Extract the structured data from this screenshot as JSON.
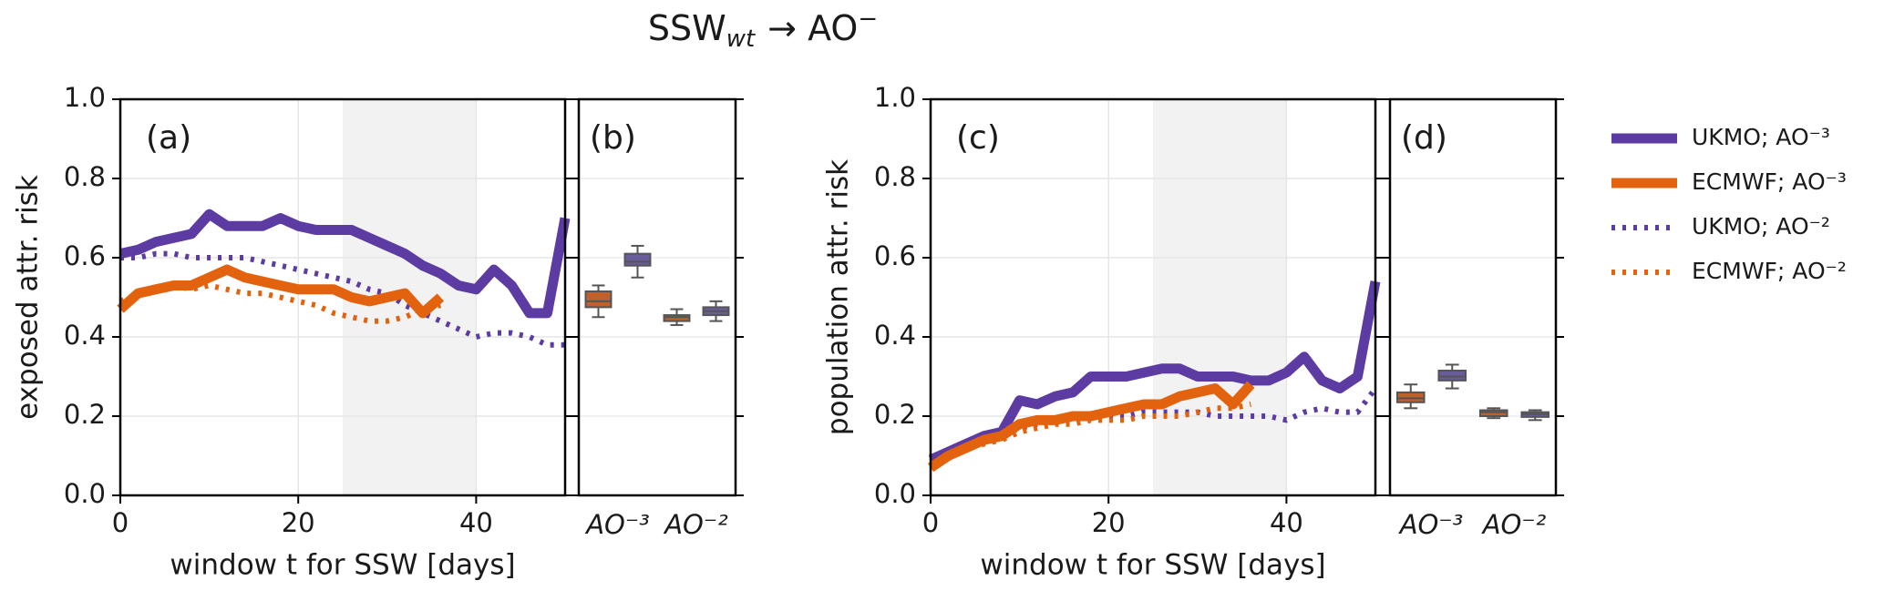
{
  "title": {
    "main": "SSW",
    "sub": "wt",
    "rest": "→ AO",
    "sup": "−"
  },
  "chart_data": [
    {
      "type": "line",
      "label": "(a)",
      "ylabel": "exposed attr. risk",
      "xlabel": "window t for SSW [days]",
      "x": [
        0,
        2,
        4,
        6,
        8,
        10,
        12,
        14,
        16,
        18,
        20,
        22,
        24,
        26,
        28,
        30,
        32,
        34,
        36,
        38,
        40,
        42,
        44,
        46,
        48,
        50
      ],
      "xlim": [
        0,
        50
      ],
      "xticks": [
        0,
        20,
        40
      ],
      "ylim": [
        0,
        1
      ],
      "yticks": [
        {
          "value": 0,
          "label": "0.0"
        },
        0.2,
        0.4,
        0.6,
        0.8,
        {
          "value": 1,
          "label": "1.0"
        }
      ],
      "grid": true,
      "shade": [
        25,
        40
      ],
      "series": [
        {
          "name": "UKMO; AO⁻³",
          "color": "#5c3ba3",
          "style": "solid",
          "values": [
            0.61,
            0.62,
            0.64,
            0.65,
            0.66,
            0.71,
            0.68,
            0.68,
            0.68,
            0.7,
            0.68,
            0.67,
            0.67,
            0.67,
            0.65,
            0.63,
            0.61,
            0.58,
            0.56,
            0.53,
            0.52,
            0.57,
            0.53,
            0.46,
            0.46,
            0.7
          ]
        },
        {
          "name": "ECMWF; AO⁻³",
          "color": "#e3620e",
          "style": "solid",
          "values": [
            0.47,
            0.51,
            0.52,
            0.53,
            0.53,
            0.55,
            0.57,
            0.55,
            0.54,
            0.53,
            0.52,
            0.52,
            0.52,
            0.5,
            0.49,
            0.5,
            0.51,
            0.46,
            0.5,
            null,
            null,
            null,
            null,
            null,
            null,
            null
          ]
        },
        {
          "name": "UKMO; AO⁻²",
          "color": "#5c3ba3",
          "style": "dotted",
          "values": [
            0.6,
            0.6,
            0.61,
            0.61,
            0.6,
            0.6,
            0.6,
            0.6,
            0.59,
            0.58,
            0.57,
            0.56,
            0.55,
            0.54,
            0.52,
            0.51,
            0.48,
            0.46,
            0.44,
            0.42,
            0.4,
            0.41,
            0.41,
            0.4,
            0.38,
            0.38
          ]
        },
        {
          "name": "ECMWF; AO⁻²",
          "color": "#e3620e",
          "style": "dotted",
          "values": [
            0.49,
            0.51,
            0.52,
            0.53,
            0.52,
            0.53,
            0.52,
            0.51,
            0.51,
            0.5,
            0.49,
            0.48,
            0.46,
            0.45,
            0.44,
            0.44,
            0.45,
            0.47,
            0.48,
            null,
            null,
            null,
            null,
            null,
            null,
            null
          ]
        }
      ]
    },
    {
      "type": "box",
      "label": "(b)",
      "categories": [
        "AO⁻³",
        "AO⁻²"
      ],
      "ylim": [
        0,
        1
      ],
      "yticks": [
        0,
        0.2,
        0.4,
        0.6,
        0.8,
        1
      ],
      "series": [
        {
          "color": "#c0602a",
          "boxes": [
            {
              "min": 0.45,
              "q1": 0.475,
              "median": 0.49,
              "q3": 0.515,
              "max": 0.53
            },
            {
              "min": 0.43,
              "q1": 0.44,
              "median": 0.45,
              "q3": 0.455,
              "max": 0.47
            }
          ]
        },
        {
          "color": "#6a5b9a",
          "boxes": [
            {
              "min": 0.55,
              "q1": 0.58,
              "median": 0.59,
              "q3": 0.61,
              "max": 0.63
            },
            {
              "min": 0.44,
              "q1": 0.455,
              "median": 0.465,
              "q3": 0.475,
              "max": 0.49
            }
          ]
        }
      ]
    },
    {
      "type": "line",
      "label": "(c)",
      "ylabel": "population attr. risk",
      "xlabel": "window t for SSW [days]",
      "x": [
        0,
        2,
        4,
        6,
        8,
        10,
        12,
        14,
        16,
        18,
        20,
        22,
        24,
        26,
        28,
        30,
        32,
        34,
        36,
        38,
        40,
        42,
        44,
        46,
        48,
        50
      ],
      "xlim": [
        0,
        50
      ],
      "xticks": [
        0,
        20,
        40
      ],
      "ylim": [
        0,
        1
      ],
      "yticks": [
        {
          "value": 0,
          "label": "0.0"
        },
        0.2,
        0.4,
        0.6,
        0.8,
        {
          "value": 1,
          "label": "1.0"
        }
      ],
      "grid": true,
      "shade": [
        25,
        40
      ],
      "series": [
        {
          "color": "#5c3ba3",
          "style": "solid",
          "values": [
            0.09,
            0.11,
            0.13,
            0.15,
            0.16,
            0.24,
            0.23,
            0.25,
            0.26,
            0.3,
            0.3,
            0.3,
            0.31,
            0.32,
            0.32,
            0.3,
            0.3,
            0.3,
            0.29,
            0.29,
            0.31,
            0.35,
            0.29,
            0.27,
            0.3,
            0.54
          ]
        },
        {
          "color": "#e3620e",
          "style": "solid",
          "values": [
            0.07,
            0.1,
            0.12,
            0.14,
            0.15,
            0.18,
            0.19,
            0.19,
            0.2,
            0.2,
            0.21,
            0.22,
            0.23,
            0.23,
            0.25,
            0.26,
            0.27,
            0.23,
            0.28,
            null,
            null,
            null,
            null,
            null,
            null,
            null
          ]
        },
        {
          "color": "#5c3ba3",
          "style": "dotted",
          "values": [
            0.09,
            0.1,
            0.12,
            0.14,
            0.15,
            0.17,
            0.18,
            0.19,
            0.19,
            0.2,
            0.2,
            0.2,
            0.21,
            0.21,
            0.21,
            0.21,
            0.2,
            0.2,
            0.2,
            0.2,
            0.19,
            0.21,
            0.22,
            0.21,
            0.21,
            0.27
          ]
        },
        {
          "color": "#e3620e",
          "style": "dotted",
          "values": [
            0.08,
            0.1,
            0.12,
            0.13,
            0.14,
            0.16,
            0.17,
            0.18,
            0.18,
            0.19,
            0.19,
            0.19,
            0.2,
            0.2,
            0.2,
            0.21,
            0.22,
            0.22,
            0.23,
            null,
            null,
            null,
            null,
            null,
            null,
            null
          ]
        }
      ]
    },
    {
      "type": "box",
      "label": "(d)",
      "categories": [
        "AO⁻³",
        "AO⁻²"
      ],
      "ylim": [
        0,
        1
      ],
      "yticks": [
        0,
        0.2,
        0.4,
        0.6,
        0.8,
        1
      ],
      "series": [
        {
          "color": "#c0602a",
          "boxes": [
            {
              "min": 0.22,
              "q1": 0.235,
              "median": 0.245,
              "q3": 0.26,
              "max": 0.28
            },
            {
              "min": 0.195,
              "q1": 0.2,
              "median": 0.21,
              "q3": 0.215,
              "max": 0.22
            }
          ]
        },
        {
          "color": "#6a5b9a",
          "boxes": [
            {
              "min": 0.27,
              "q1": 0.29,
              "median": 0.3,
              "q3": 0.315,
              "max": 0.33
            },
            {
              "min": 0.19,
              "q1": 0.198,
              "median": 0.205,
              "q3": 0.21,
              "max": 0.215
            }
          ]
        }
      ]
    }
  ]
}
